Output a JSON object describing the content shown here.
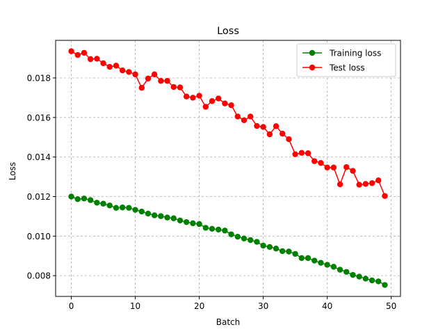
{
  "chart_data": {
    "type": "line",
    "title": "Loss",
    "xlabel": "Batch",
    "ylabel": "Loss",
    "xlim": [
      -2.45,
      51.45
    ],
    "ylim": [
      0.00695,
      0.0199
    ],
    "xticks": [
      0,
      10,
      20,
      30,
      40,
      50
    ],
    "yticks": [
      0.008,
      0.01,
      0.012,
      0.014,
      0.016,
      0.018
    ],
    "ytick_labels": [
      "0.008",
      "0.010",
      "0.012",
      "0.014",
      "0.016",
      "0.018"
    ],
    "grid": true,
    "legend_position": "top-right",
    "x": [
      0,
      1,
      2,
      3,
      4,
      5,
      6,
      7,
      8,
      9,
      10,
      11,
      12,
      13,
      14,
      15,
      16,
      17,
      18,
      19,
      20,
      21,
      22,
      23,
      24,
      25,
      26,
      27,
      28,
      29,
      30,
      31,
      32,
      33,
      34,
      35,
      36,
      37,
      38,
      39,
      40,
      41,
      42,
      43,
      44,
      45,
      46,
      47,
      48,
      49
    ],
    "series": [
      {
        "name": "Training loss",
        "color": "#008000",
        "values": [
          0.012,
          0.01187,
          0.0119,
          0.01182,
          0.01169,
          0.01164,
          0.01155,
          0.01143,
          0.01145,
          0.01143,
          0.01133,
          0.01124,
          0.01114,
          0.01105,
          0.01101,
          0.01094,
          0.0109,
          0.01079,
          0.01071,
          0.01065,
          0.01061,
          0.01042,
          0.01037,
          0.01033,
          0.01028,
          0.01009,
          0.00997,
          0.00988,
          0.0098,
          0.00971,
          0.00952,
          0.00945,
          0.00937,
          0.00924,
          0.00922,
          0.0091,
          0.00889,
          0.00889,
          0.00876,
          0.00865,
          0.00855,
          0.00845,
          0.0083,
          0.00819,
          0.00804,
          0.00795,
          0.00785,
          0.00776,
          0.00771,
          0.00753
        ]
      },
      {
        "name": "Test loss",
        "color": "#ff0000",
        "values": [
          0.01935,
          0.01916,
          0.01927,
          0.01895,
          0.01897,
          0.01874,
          0.01856,
          0.01862,
          0.01838,
          0.0183,
          0.01818,
          0.0175,
          0.01797,
          0.01818,
          0.01785,
          0.01785,
          0.01754,
          0.01752,
          0.01706,
          0.017,
          0.0171,
          0.01654,
          0.01683,
          0.01696,
          0.01671,
          0.01662,
          0.01605,
          0.01586,
          0.01605,
          0.01557,
          0.01552,
          0.01515,
          0.01556,
          0.01518,
          0.0149,
          0.01414,
          0.01421,
          0.01419,
          0.01379,
          0.0137,
          0.01347,
          0.01347,
          0.01262,
          0.01349,
          0.0133,
          0.0126,
          0.01264,
          0.01268,
          0.01282,
          0.01203
        ]
      }
    ]
  }
}
